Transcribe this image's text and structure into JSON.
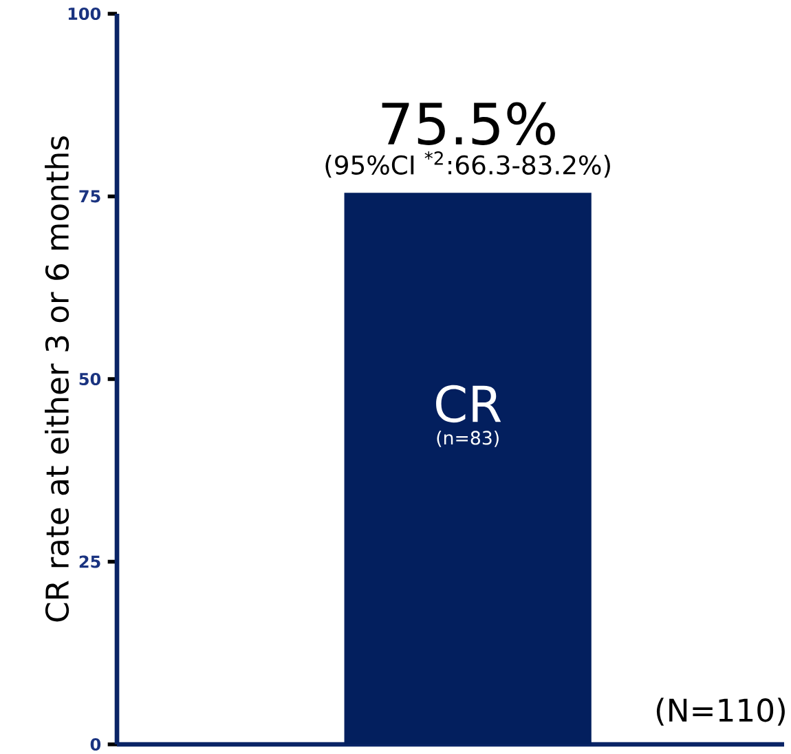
{
  "chart_data": {
    "type": "bar",
    "ylabel": "CR rate at either 3 or 6 months",
    "categories": [
      "CR"
    ],
    "values": [
      75.5
    ],
    "color": "#031f5e",
    "value_labels": [
      "75.5%"
    ],
    "ylim": [
      0,
      100
    ],
    "yticks": [
      0,
      25,
      50,
      75,
      100
    ],
    "annotations": [
      "(95%CI $^{*2}$:66.3-83.2%)",
      "(n=83)",
      "(N=110)"
    ]
  }
}
